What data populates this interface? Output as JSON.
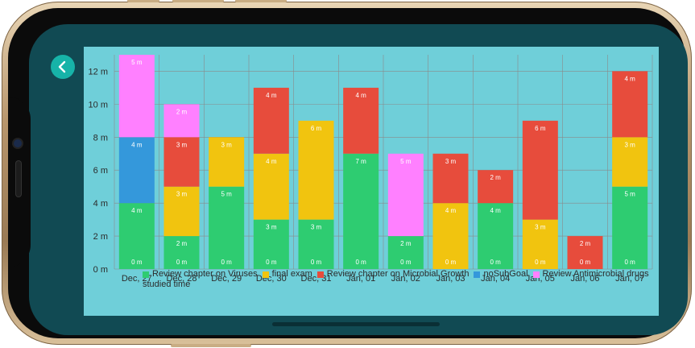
{
  "app": {
    "back_icon": "chevron-left-icon",
    "accent_color": "#17b3a8",
    "background_color": "#114a53",
    "panel_color": "#6fcfd9"
  },
  "chart_data": {
    "type": "bar",
    "stacked": true,
    "title": "",
    "xlabel": "",
    "ylabel": "",
    "ylim": [
      0,
      13
    ],
    "yticks": [
      "0 m",
      "2 m",
      "4 m",
      "6 m",
      "8 m",
      "10 m",
      "12 m"
    ],
    "categories": [
      "Dec, 27",
      "Dec, 28",
      "Dec, 29",
      "Dec, 30",
      "Dec, 31",
      "Jan, 01",
      "Jan, 02",
      "Jan, 03",
      "Jan, 04",
      "Jan, 05",
      "Jan, 06",
      "Jan, 07"
    ],
    "grid": true,
    "legend_position": "bottom",
    "series": [
      {
        "name": "Review chapter on Viruses",
        "color": "#2ecc71",
        "values": [
          4,
          2,
          5,
          3,
          3,
          7,
          2,
          0,
          4,
          0,
          0,
          5
        ]
      },
      {
        "name": "final exam",
        "color": "#f1c40f",
        "values": [
          0,
          3,
          3,
          4,
          6,
          0,
          0,
          4,
          0,
          3,
          0,
          3
        ]
      },
      {
        "name": "Review chapter on Microbial Growth",
        "color": "#e74c3c",
        "values": [
          0,
          3,
          0,
          4,
          0,
          4,
          0,
          3,
          2,
          6,
          2,
          4
        ]
      },
      {
        "name": "noSubGoal",
        "color": "#3498db",
        "values": [
          4,
          0,
          0,
          0,
          0,
          0,
          0,
          0,
          0,
          0,
          0,
          0
        ]
      },
      {
        "name": "Review Antimicrobial drugs",
        "color": "#ff80ff",
        "values": [
          5,
          2,
          0,
          0,
          0,
          0,
          5,
          0,
          0,
          0,
          0,
          0
        ]
      }
    ],
    "bottom_labels": [
      "0 m",
      "0 m",
      "0 m",
      "0 m",
      "0 m",
      "0 m",
      "0 m",
      "0 m",
      "0 m",
      "0 m",
      "0 m",
      "0 m"
    ],
    "description": "studied time"
  }
}
